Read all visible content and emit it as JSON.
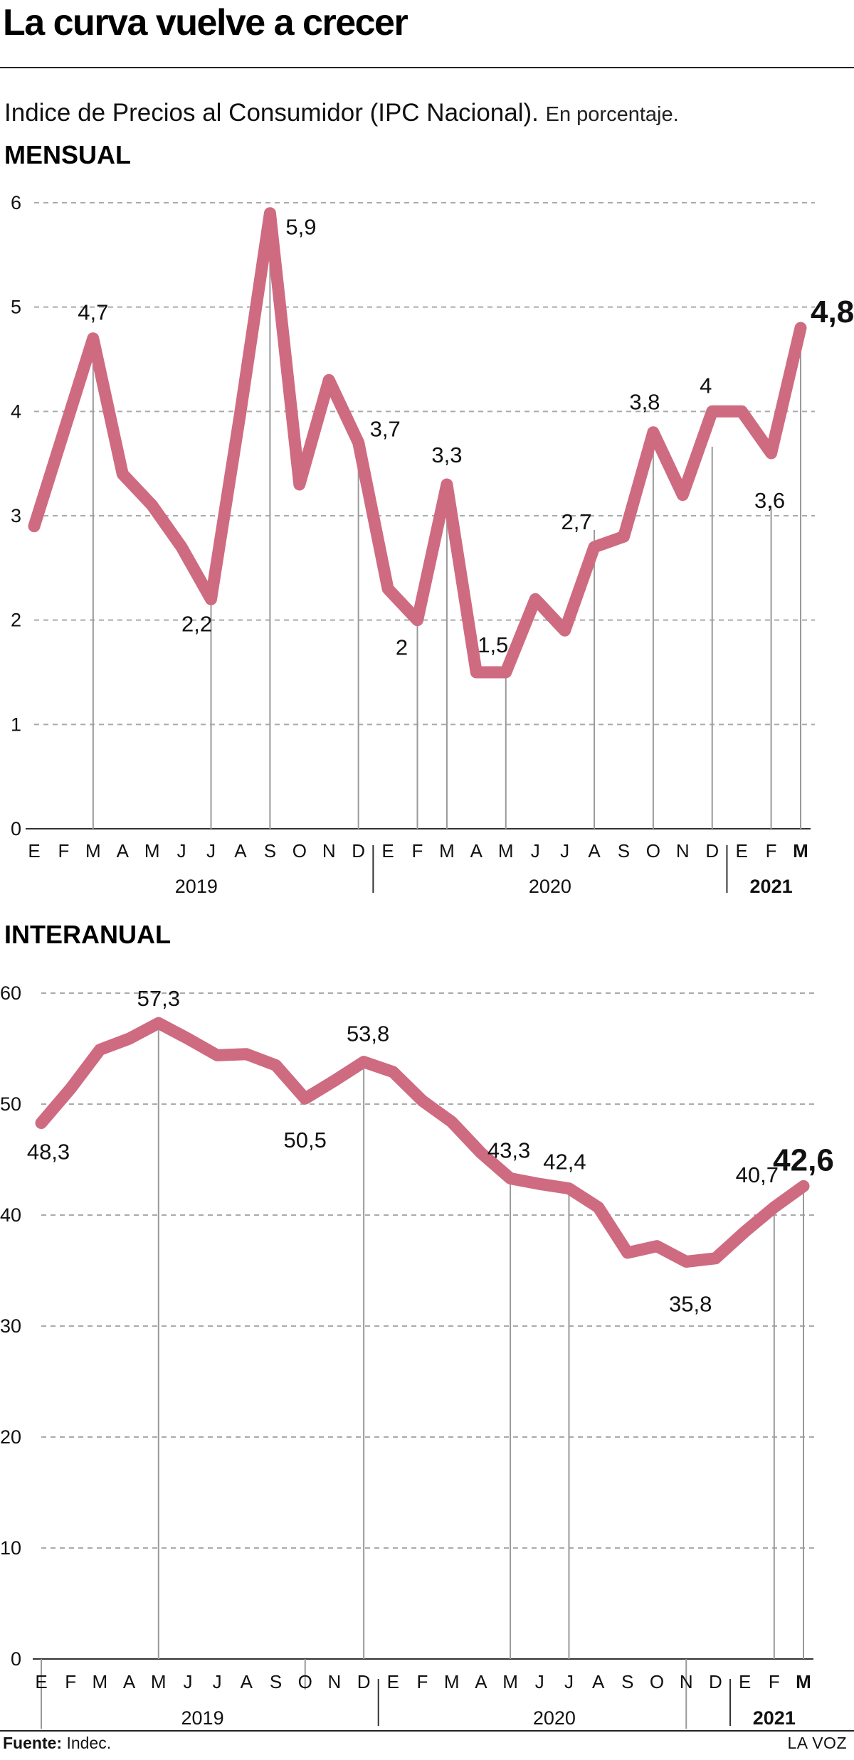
{
  "headline": "La curva vuelve a crecer",
  "subtitle": "Indice de Precios al Consumidor (IPC Nacional).",
  "subtitle_note": "En porcentaje.",
  "footer": {
    "source_label": "Fuente:",
    "source_value": "Indec.",
    "brand": "LA VOZ"
  },
  "colors": {
    "line": "#cf6b80",
    "grid": "#aaaaaa",
    "text": "#111111"
  },
  "chart_data": [
    {
      "id": "monthly",
      "type": "line",
      "title": "MENSUAL",
      "x": [
        "E",
        "F",
        "M",
        "A",
        "M",
        "J",
        "J",
        "A",
        "S",
        "O",
        "N",
        "D",
        "E",
        "F",
        "M",
        "A",
        "M",
        "J",
        "J",
        "A",
        "S",
        "O",
        "N",
        "D",
        "E",
        "F",
        "M"
      ],
      "year_groups": [
        {
          "label": "2019",
          "start": 0,
          "end": 11,
          "bold": false
        },
        {
          "label": "2020",
          "start": 12,
          "end": 23,
          "bold": false
        },
        {
          "label": "2021",
          "start": 24,
          "end": 26,
          "bold": true
        }
      ],
      "series": [
        {
          "values": [
            2.9,
            3.8,
            4.7,
            3.4,
            3.1,
            2.7,
            2.2,
            4.0,
            5.9,
            3.3,
            4.3,
            3.7,
            2.3,
            2.0,
            3.3,
            1.5,
            1.5,
            2.2,
            1.9,
            2.7,
            2.8,
            3.8,
            3.2,
            4.0,
            4.0,
            3.6,
            4.8
          ]
        }
      ],
      "ylim": [
        0,
        6
      ],
      "yticks": [
        0,
        1,
        2,
        3,
        4,
        5,
        6
      ],
      "grid": true,
      "data_labels": [
        {
          "index": 2,
          "text": "4,7"
        },
        {
          "index": 6,
          "text": "2,2"
        },
        {
          "index": 8,
          "text": "5,9"
        },
        {
          "index": 11,
          "text": "3,7"
        },
        {
          "index": 13,
          "text": "2"
        },
        {
          "index": 14,
          "text": "3,3"
        },
        {
          "index": 16,
          "text": "1,5"
        },
        {
          "index": 19,
          "text": "2,7"
        },
        {
          "index": 21,
          "text": "3,8"
        },
        {
          "index": 23,
          "text": "4"
        },
        {
          "index": 25,
          "text": "3,6"
        },
        {
          "index": 26,
          "text": "4,8"
        }
      ]
    },
    {
      "id": "annual",
      "type": "line",
      "title": "INTERANUAL",
      "x": [
        "E",
        "F",
        "M",
        "A",
        "M",
        "J",
        "J",
        "A",
        "S",
        "O",
        "N",
        "D",
        "E",
        "F",
        "M",
        "A",
        "M",
        "J",
        "J",
        "A",
        "S",
        "O",
        "N",
        "D",
        "E",
        "F",
        "M"
      ],
      "year_groups": [
        {
          "label": "2019",
          "start": 0,
          "end": 11,
          "bold": false
        },
        {
          "label": "2020",
          "start": 12,
          "end": 23,
          "bold": false
        },
        {
          "label": "2021",
          "start": 24,
          "end": 26,
          "bold": true
        }
      ],
      "series": [
        {
          "values": [
            48.3,
            51.4,
            54.9,
            55.9,
            57.3,
            55.9,
            54.4,
            54.5,
            53.5,
            50.5,
            52.1,
            53.8,
            52.9,
            50.3,
            48.4,
            45.6,
            43.3,
            42.8,
            42.4,
            40.7,
            36.6,
            37.2,
            35.8,
            36.1,
            38.5,
            40.7,
            42.6
          ]
        }
      ],
      "ylim": [
        0,
        60
      ],
      "yticks": [
        0,
        10,
        20,
        30,
        40,
        50,
        60
      ],
      "grid": true,
      "data_labels": [
        {
          "index": 0,
          "text": "48,3"
        },
        {
          "index": 4,
          "text": "57,3"
        },
        {
          "index": 9,
          "text": "50,5"
        },
        {
          "index": 11,
          "text": "53,8"
        },
        {
          "index": 16,
          "text": "43,3"
        },
        {
          "index": 18,
          "text": "42,4"
        },
        {
          "index": 22,
          "text": "35,8"
        },
        {
          "index": 25,
          "text": "40,7"
        },
        {
          "index": 26,
          "text": "42,6"
        }
      ]
    }
  ]
}
